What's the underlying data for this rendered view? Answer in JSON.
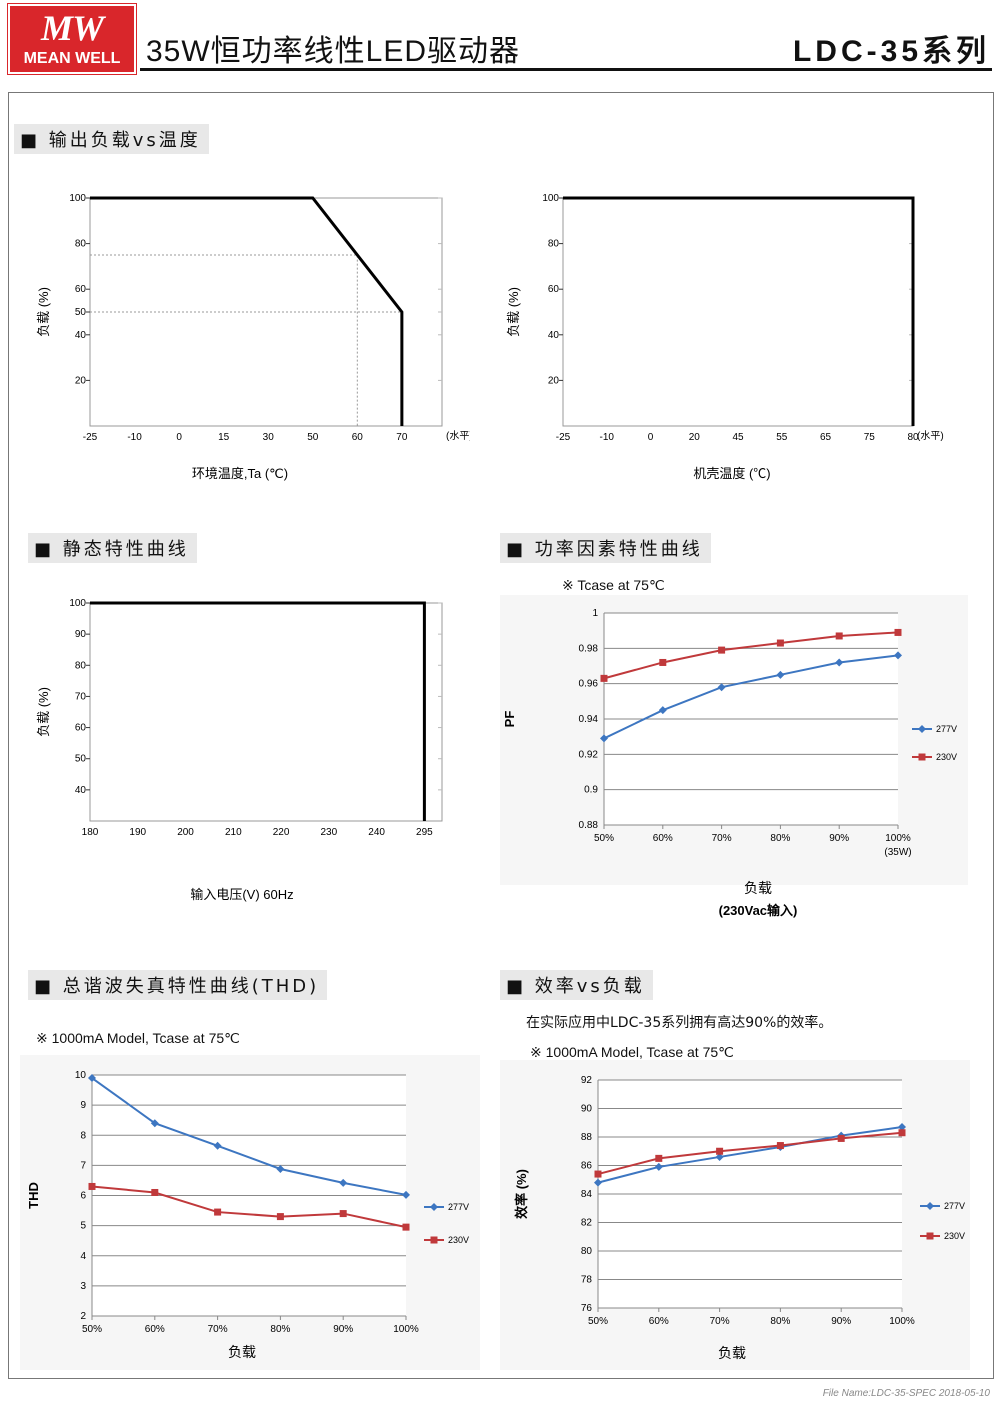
{
  "header": {
    "logo_mark": "MW",
    "logo_text": "MEAN WELL",
    "doc_title": "35W恒功率线性LED驱动器",
    "series": "LDC-35系列",
    "colors": {
      "logo_red": "#d9262b",
      "series_277": "#3d76c1",
      "series_230": "#c0393b"
    }
  },
  "sections": {
    "derating": "■ 输出负载vs温度",
    "static": "■ 静态特性曲线",
    "pf": "■ 功率因素特性曲线",
    "thd": "■ 总谐波失真特性曲线(THD)",
    "eff": "■ 效率vs负载"
  },
  "notes": {
    "pf_note": "※ Tcase at 75℃",
    "thd_note": "※ 1000mA Model, Tcase at 75℃",
    "eff_intro": "在实际应用中LDC-35系列拥有高达90%的效率。",
    "eff_note": "※ 1000mA Model, Tcase at 75℃"
  },
  "footer": "File Name:LDC-35-SPEC   2018-05-10",
  "chart_data": [
    {
      "id": "ambient",
      "type": "line",
      "xlabel": "环境温度,Ta (℃)",
      "ylabel": "负载 (%)",
      "x_ticks": [
        "-25",
        "-10",
        "0",
        "15",
        "30",
        "50",
        "60",
        "70"
      ],
      "x_unit": "(水平)",
      "y_ticks": [
        20,
        40,
        50,
        60,
        80,
        100
      ],
      "ylim": [
        0,
        100
      ],
      "series": [
        {
          "x": [
            "-25",
            "50",
            "70",
            "70"
          ],
          "y": [
            100,
            100,
            50,
            0
          ]
        }
      ],
      "guides": [
        {
          "x": "60",
          "y": 75
        },
        {
          "x": "70",
          "y": 50
        }
      ]
    },
    {
      "id": "case",
      "type": "line",
      "xlabel": "机壳温度 (℃)",
      "ylabel": "负载 (%)",
      "x_ticks": [
        "-25",
        "-10",
        "0",
        "20",
        "45",
        "55",
        "65",
        "75",
        "80"
      ],
      "x_unit": "(水平)",
      "y_ticks": [
        20,
        40,
        60,
        80,
        100
      ],
      "ylim": [
        0,
        100
      ],
      "series": [
        {
          "x": [
            "-25",
            "80",
            "80"
          ],
          "y": [
            100,
            100,
            0
          ]
        }
      ]
    },
    {
      "id": "static",
      "type": "line",
      "xlabel": "输入电压(V) 60Hz",
      "ylabel": "负载 (%)",
      "x_ticks": [
        "180",
        "190",
        "200",
        "210",
        "220",
        "230",
        "240",
        "295"
      ],
      "y_ticks": [
        40,
        50,
        60,
        70,
        80,
        90,
        100
      ],
      "ylim": [
        30,
        100
      ],
      "series": [
        {
          "x": [
            "180",
            "295",
            "295"
          ],
          "y": [
            100,
            100,
            30
          ]
        }
      ]
    },
    {
      "id": "pf",
      "type": "line",
      "xlabel": "负载",
      "xlabel2": "(230Vac输入)",
      "ylabel": "PF",
      "categories": [
        "50%",
        "60%",
        "70%",
        "80%",
        "90%",
        "100%"
      ],
      "x_extra": "(35W)",
      "y_ticks": [
        "0.88",
        "0.9",
        "0.92",
        "0.94",
        "0.96",
        "0.98",
        "1"
      ],
      "ylim": [
        0.88,
        1.0
      ],
      "series": [
        {
          "name": "277V",
          "values": [
            0.929,
            0.945,
            0.958,
            0.965,
            0.972,
            0.976
          ]
        },
        {
          "name": "230V",
          "values": [
            0.963,
            0.972,
            0.979,
            0.983,
            0.987,
            0.989
          ]
        }
      ]
    },
    {
      "id": "thd",
      "type": "line",
      "xlabel": "负载",
      "ylabel": "THD",
      "categories": [
        "50%",
        "60%",
        "70%",
        "80%",
        "90%",
        "100%"
      ],
      "y_ticks": [
        "2",
        "3",
        "4",
        "5",
        "6",
        "7",
        "8",
        "9",
        "10"
      ],
      "ylim": [
        2,
        10
      ],
      "series": [
        {
          "name": "277V",
          "values": [
            9.9,
            8.4,
            7.65,
            6.88,
            6.42,
            6.02
          ]
        },
        {
          "name": "230V",
          "values": [
            6.3,
            6.1,
            5.45,
            5.3,
            5.4,
            4.95
          ]
        }
      ]
    },
    {
      "id": "eff",
      "type": "line",
      "xlabel": "负载",
      "ylabel": "效率 (%)",
      "categories": [
        "50%",
        "60%",
        "70%",
        "80%",
        "90%",
        "100%"
      ],
      "y_ticks": [
        "76",
        "78",
        "80",
        "82",
        "84",
        "86",
        "88",
        "90",
        "92"
      ],
      "ylim": [
        76,
        92
      ],
      "series": [
        {
          "name": "277V",
          "values": [
            84.8,
            85.9,
            86.6,
            87.3,
            88.1,
            88.7
          ]
        },
        {
          "name": "230V",
          "values": [
            85.4,
            86.5,
            87.0,
            87.4,
            87.9,
            88.3
          ]
        }
      ]
    }
  ]
}
